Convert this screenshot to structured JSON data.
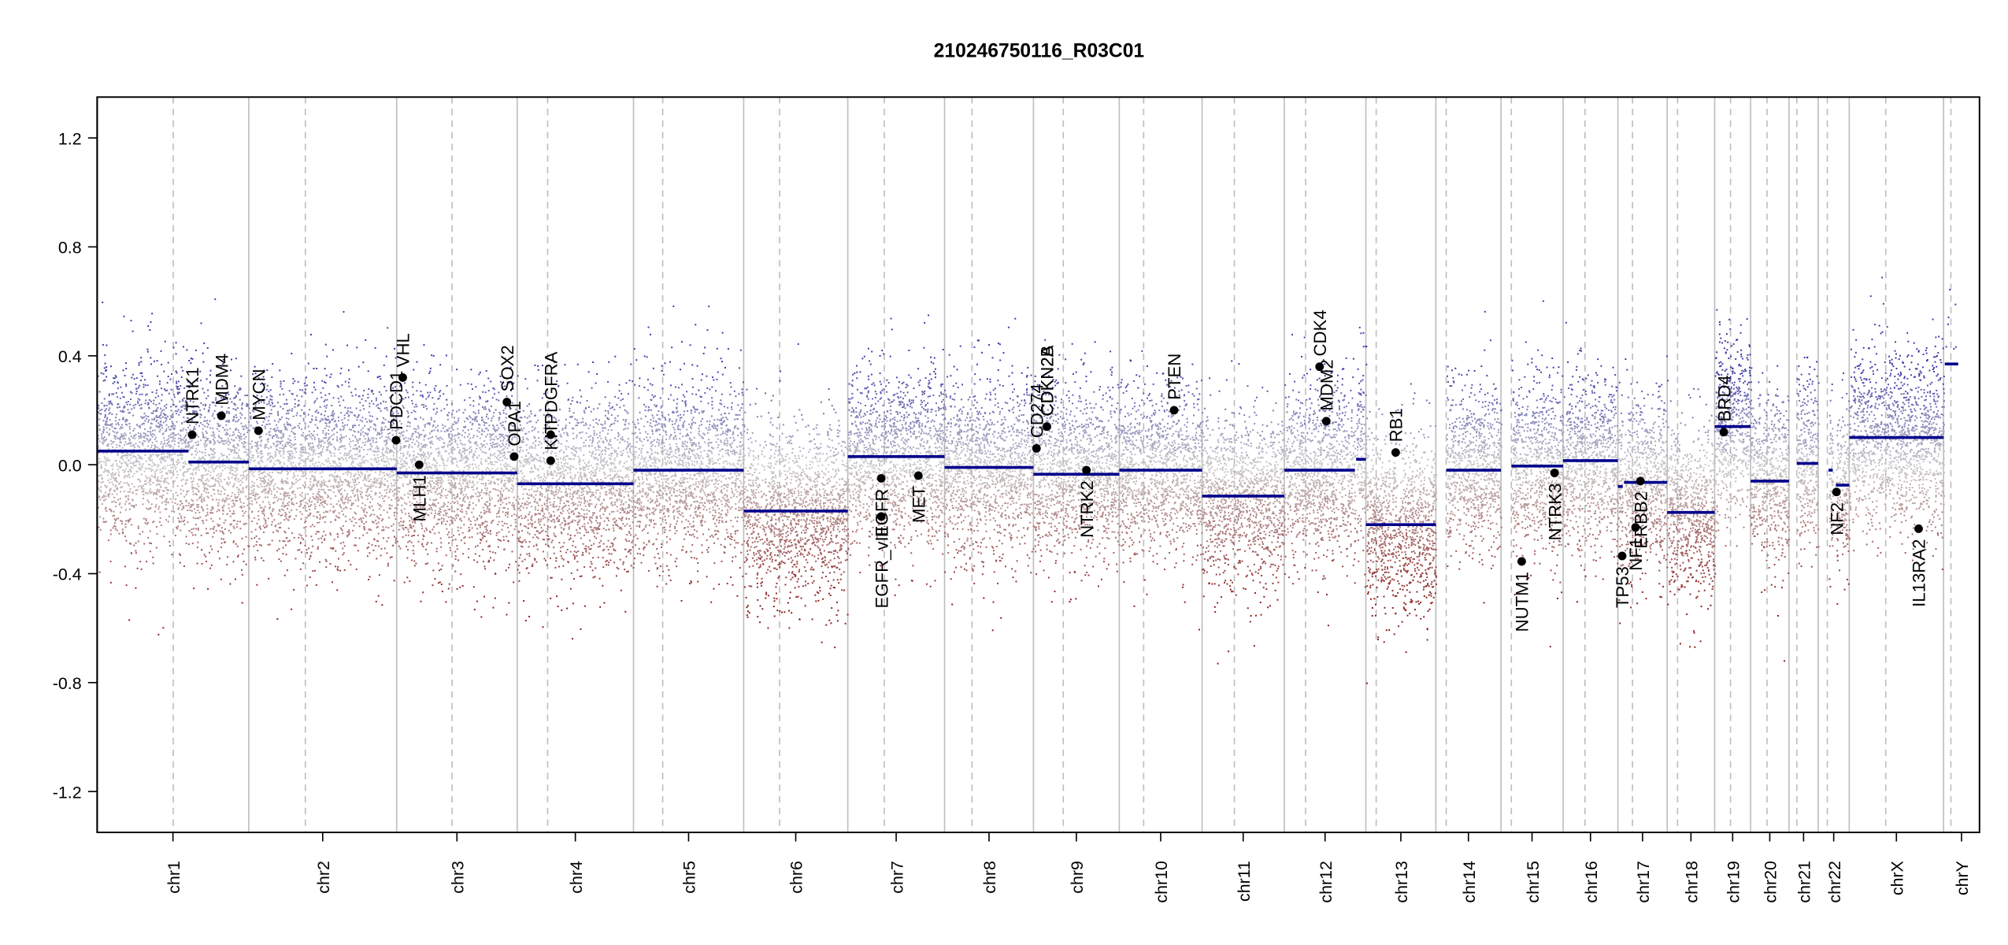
{
  "chart_data": {
    "type": "scatter",
    "title": "210246750116_R03C01",
    "xlabel": "",
    "ylabel": "",
    "ylim": [
      -1.35,
      1.35
    ],
    "y_ticks": [
      1.2,
      0.8,
      0.4,
      0.0,
      -0.4,
      -0.8,
      -1.2
    ],
    "y_tick_labels": [
      "1.2",
      "0.8",
      "0.4",
      "0.0",
      "-0.4",
      "-0.8",
      "-1.2"
    ],
    "grid": false,
    "colors": {
      "gain": "#3a3aa8",
      "neutral": "#c8c8c8",
      "loss": "#8b1a1a",
      "segment": "#00008b",
      "gene": "#000000",
      "chr_border": "#bebebe",
      "centromere": "#bebebe"
    },
    "x_units": "genome position (Mb)",
    "chromosomes": [
      {
        "name": "chr1",
        "length": 249,
        "centromere": 125,
        "segments": [
          {
            "from": 0,
            "to": 150,
            "mean": 0.05
          },
          {
            "from": 150,
            "to": 249,
            "mean": 0.01
          }
        ]
      },
      {
        "name": "chr2",
        "length": 243,
        "centromere": 93,
        "segments": [
          {
            "from": 0,
            "to": 243,
            "mean": -0.015
          }
        ]
      },
      {
        "name": "chr3",
        "length": 198,
        "centromere": 91,
        "segments": [
          {
            "from": 0,
            "to": 198,
            "mean": -0.03
          }
        ]
      },
      {
        "name": "chr4",
        "length": 191,
        "centromere": 50,
        "segments": [
          {
            "from": 0,
            "to": 191,
            "mean": -0.07
          }
        ]
      },
      {
        "name": "chr5",
        "length": 181,
        "centromere": 48,
        "segments": [
          {
            "from": 0,
            "to": 181,
            "mean": -0.02
          }
        ]
      },
      {
        "name": "chr6",
        "length": 171,
        "centromere": 59,
        "segments": [
          {
            "from": 0,
            "to": 171,
            "mean": -0.17
          }
        ]
      },
      {
        "name": "chr7",
        "length": 159,
        "centromere": 60,
        "segments": [
          {
            "from": 0,
            "to": 159,
            "mean": 0.03
          }
        ]
      },
      {
        "name": "chr8",
        "length": 146,
        "centromere": 45,
        "segments": [
          {
            "from": 0,
            "to": 146,
            "mean": -0.01
          }
        ]
      },
      {
        "name": "chr9",
        "length": 141,
        "centromere": 49,
        "segments": [
          {
            "from": 0,
            "to": 141,
            "mean": -0.035
          }
        ]
      },
      {
        "name": "chr10",
        "length": 136,
        "centromere": 40,
        "segments": [
          {
            "from": 0,
            "to": 136,
            "mean": -0.02
          }
        ]
      },
      {
        "name": "chr11",
        "length": 135,
        "centromere": 53,
        "segments": [
          {
            "from": 0,
            "to": 135,
            "mean": -0.115
          }
        ]
      },
      {
        "name": "chr12",
        "length": 134,
        "centromere": 35,
        "segments": [
          {
            "from": 0,
            "to": 116,
            "mean": -0.02
          },
          {
            "from": 118,
            "to": 134,
            "mean": 0.02
          }
        ]
      },
      {
        "name": "chr13",
        "length": 115,
        "centromere": 17,
        "segments": [
          {
            "from": 0,
            "to": 115,
            "mean": -0.22
          }
        ]
      },
      {
        "name": "chr14",
        "length": 107,
        "centromere": 17,
        "segments": [
          {
            "from": 17,
            "to": 107,
            "mean": -0.02
          }
        ]
      },
      {
        "name": "chr15",
        "length": 102,
        "centromere": 17,
        "segments": [
          {
            "from": 17,
            "to": 102,
            "mean": -0.005
          }
        ]
      },
      {
        "name": "chr16",
        "length": 90,
        "centromere": 36,
        "segments": [
          {
            "from": 0,
            "to": 90,
            "mean": 0.015
          }
        ]
      },
      {
        "name": "chr17",
        "length": 81,
        "centromere": 24,
        "segments": [
          {
            "from": 0,
            "to": 8,
            "mean": -0.08
          },
          {
            "from": 10,
            "to": 81,
            "mean": -0.065
          }
        ]
      },
      {
        "name": "chr18",
        "length": 78,
        "centromere": 17,
        "segments": [
          {
            "from": 0,
            "to": 78,
            "mean": -0.175
          }
        ]
      },
      {
        "name": "chr19",
        "length": 59,
        "centromere": 26,
        "segments": [
          {
            "from": 0,
            "to": 59,
            "mean": 0.14
          }
        ]
      },
      {
        "name": "chr20",
        "length": 63,
        "centromere": 27,
        "segments": [
          {
            "from": 0,
            "to": 63,
            "mean": -0.06
          }
        ]
      },
      {
        "name": "chr21",
        "length": 48,
        "centromere": 13,
        "segments": [
          {
            "from": 13,
            "to": 48,
            "mean": 0.005
          }
        ]
      },
      {
        "name": "chr22",
        "length": 51,
        "centromere": 15,
        "segments": [
          {
            "from": 17,
            "to": 24,
            "mean": -0.02
          },
          {
            "from": 29,
            "to": 51,
            "mean": -0.075
          }
        ]
      },
      {
        "name": "chrX",
        "length": 155,
        "centromere": 60,
        "segments": [
          {
            "from": 0,
            "to": 155,
            "mean": 0.1
          }
        ]
      },
      {
        "name": "chrY",
        "length": 59,
        "centromere": 12,
        "segments": [
          {
            "from": 2,
            "to": 24,
            "mean": 0.37
          }
        ]
      }
    ],
    "genes": [
      {
        "name": "NTRK1",
        "chr": "chr1",
        "pos": 156,
        "value": 0.11,
        "label_side": "up"
      },
      {
        "name": "MDM4",
        "chr": "chr1",
        "pos": 204,
        "value": 0.18,
        "label_side": "up"
      },
      {
        "name": "MYCN",
        "chr": "chr2",
        "pos": 16,
        "value": 0.125,
        "label_side": "up"
      },
      {
        "name": "PDCD1",
        "chr": "chr2",
        "pos": 242,
        "value": 0.09,
        "label_side": "up"
      },
      {
        "name": "VHL",
        "chr": "chr3",
        "pos": 10,
        "value": 0.32,
        "label_side": "up"
      },
      {
        "name": "MLH1",
        "chr": "chr3",
        "pos": 37,
        "value": 0.0,
        "label_side": "down"
      },
      {
        "name": "OPA1",
        "chr": "chr3",
        "pos": 193,
        "value": 0.03,
        "label_side": "up"
      },
      {
        "name": "SOX2",
        "chr": "chr3",
        "pos": 181,
        "value": 0.23,
        "label_side": "up"
      },
      {
        "name": "KIT",
        "chr": "chr4",
        "pos": 55,
        "value": 0.015,
        "label_side": "up"
      },
      {
        "name": "PDGFRA",
        "chr": "chr4",
        "pos": 55,
        "value": 0.11,
        "label_side": "up"
      },
      {
        "name": "EGFR_vIII",
        "chr": "chr7",
        "pos": 55,
        "value": -0.19,
        "label_side": "down"
      },
      {
        "name": "EGFR",
        "chr": "chr7",
        "pos": 55,
        "value": -0.05,
        "label_side": "down"
      },
      {
        "name": "MET",
        "chr": "chr7",
        "pos": 116,
        "value": -0.04,
        "label_side": "down"
      },
      {
        "name": "CD274",
        "chr": "chr9",
        "pos": 5,
        "value": 0.06,
        "label_side": "up"
      },
      {
        "name": "CDKN2A",
        "chr": "chr9",
        "pos": 22,
        "value": 0.14,
        "label_side": "up"
      },
      {
        "name": "CDKN2B",
        "chr": "chr9",
        "pos": 22,
        "value": 0.14,
        "label_side": "up"
      },
      {
        "name": "NTRK2",
        "chr": "chr9",
        "pos": 87,
        "value": -0.02,
        "label_side": "down"
      },
      {
        "name": "PTEN",
        "chr": "chr10",
        "pos": 90,
        "value": 0.2,
        "label_side": "up"
      },
      {
        "name": "CDK4",
        "chr": "chr12",
        "pos": 58,
        "value": 0.36,
        "label_side": "up"
      },
      {
        "name": "MDM2",
        "chr": "chr12",
        "pos": 69,
        "value": 0.16,
        "label_side": "up"
      },
      {
        "name": "RB1",
        "chr": "chr13",
        "pos": 49,
        "value": 0.045,
        "label_side": "up"
      },
      {
        "name": "NUTM1",
        "chr": "chr15",
        "pos": 34,
        "value": -0.355,
        "label_side": "down"
      },
      {
        "name": "NTRK3",
        "chr": "chr15",
        "pos": 88,
        "value": -0.03,
        "label_side": "down"
      },
      {
        "name": "TP53",
        "chr": "chr17",
        "pos": 7,
        "value": -0.335,
        "label_side": "down"
      },
      {
        "name": "NF1",
        "chr": "chr17",
        "pos": 29,
        "value": -0.23,
        "label_side": "down"
      },
      {
        "name": "ERBB2",
        "chr": "chr17",
        "pos": 37,
        "value": -0.06,
        "label_side": "down"
      },
      {
        "name": "BRD4",
        "chr": "chr19",
        "pos": 15,
        "value": 0.12,
        "label_side": "up"
      },
      {
        "name": "NF2",
        "chr": "chr22",
        "pos": 30,
        "value": -0.1,
        "label_side": "down"
      },
      {
        "name": "IL13RA2",
        "chr": "chrX",
        "pos": 114,
        "value": -0.235,
        "label_side": "down"
      }
    ]
  }
}
